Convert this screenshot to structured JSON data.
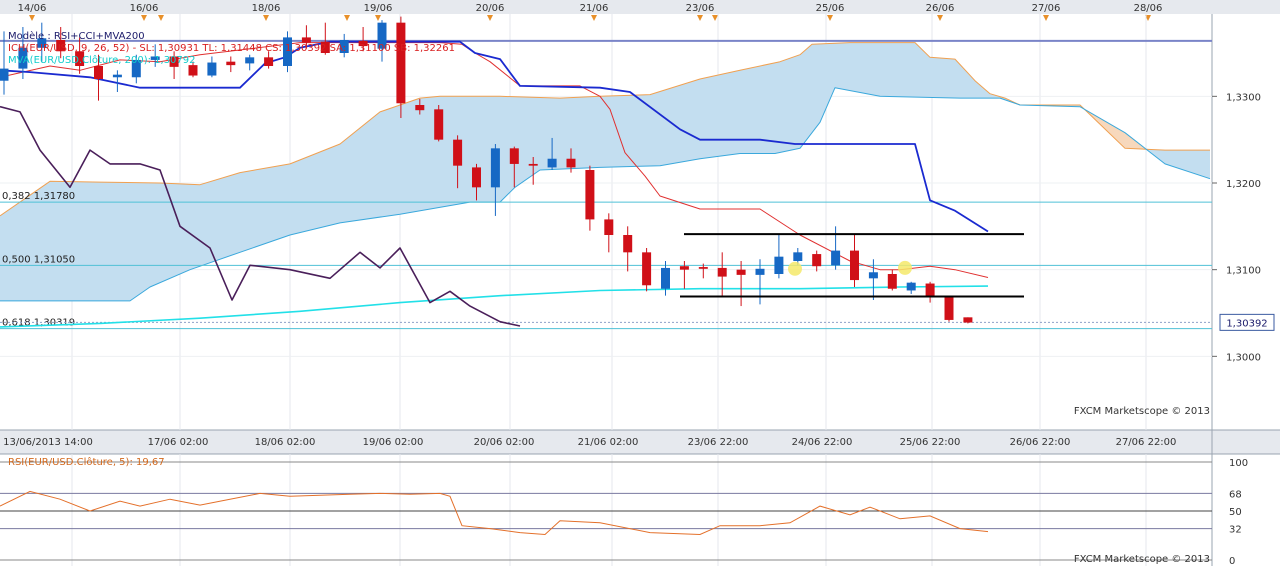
{
  "chart_data": [
    {
      "type": "candlestick",
      "title": "Modèle : RSI+CCI+MVA200",
      "indicators": [
        {
          "name": "Ichimoku",
          "text": "ICH(EUR/USD, 9, 26, 52) - SL: 1,30931  TL: 1,31448  CS: 1,30392  SA: 1,31100  SB: 1,32261",
          "color": "#d92020"
        },
        {
          "name": "MVA",
          "text": "MVA(EUR/USD.Clôture, 200): 1,30792",
          "color": "#11cccc"
        }
      ],
      "top_date_labels": [
        "14/06",
        "16/06",
        "18/06",
        "19/06",
        "20/06",
        "21/06",
        "23/06",
        "25/06",
        "26/06",
        "27/06",
        "28/06"
      ],
      "bottom_date_labels": [
        "13/06/2013 14:00",
        "17/06 02:00",
        "18/06 02:00",
        "19/06 02:00",
        "20/06 02:00",
        "21/06 02:00",
        "23/06 22:00",
        "24/06 22:00",
        "25/06 22:00",
        "26/06 22:00",
        "27/06 22:00"
      ],
      "y_ticks": [
        "1,3300",
        "1,3200",
        "1,3100",
        "1,3000"
      ],
      "y_tick_values": [
        1.33,
        1.32,
        1.31,
        1.3
      ],
      "ylim": [
        1.2915,
        1.3395
      ],
      "last_price": "1,30392",
      "last_price_value": 1.30392,
      "fib_levels": [
        {
          "label": "0,382 1,31780",
          "value": 1.3178
        },
        {
          "label": "0,500 1,31050",
          "value": 1.3105
        },
        {
          "label": "0,618 1,30319",
          "value": 1.3032
        }
      ],
      "top_level": 1.3364,
      "range_box": {
        "high": 1.3141,
        "low": 1.3069
      },
      "candles": [
        {
          "o": 1.3318,
          "h": 1.3375,
          "l": 1.3302,
          "c": 1.3332
        },
        {
          "o": 1.3332,
          "h": 1.338,
          "l": 1.332,
          "c": 1.3356
        },
        {
          "o": 1.3356,
          "h": 1.3385,
          "l": 1.334,
          "c": 1.3367
        },
        {
          "o": 1.3365,
          "h": 1.338,
          "l": 1.3344,
          "c": 1.3352
        },
        {
          "o": 1.3352,
          "h": 1.3368,
          "l": 1.3326,
          "c": 1.3335
        },
        {
          "o": 1.3335,
          "h": 1.3348,
          "l": 1.3295,
          "c": 1.332
        },
        {
          "o": 1.3322,
          "h": 1.333,
          "l": 1.3305,
          "c": 1.3325
        },
        {
          "o": 1.3322,
          "h": 1.3348,
          "l": 1.3315,
          "c": 1.3342
        },
        {
          "o": 1.3342,
          "h": 1.336,
          "l": 1.3334,
          "c": 1.3346
        },
        {
          "o": 1.3346,
          "h": 1.3352,
          "l": 1.332,
          "c": 1.3334
        },
        {
          "o": 1.3336,
          "h": 1.334,
          "l": 1.3322,
          "c": 1.3324
        },
        {
          "o": 1.3324,
          "h": 1.3346,
          "l": 1.3322,
          "c": 1.3339
        },
        {
          "o": 1.334,
          "h": 1.3346,
          "l": 1.3328,
          "c": 1.3336
        },
        {
          "o": 1.3338,
          "h": 1.3348,
          "l": 1.333,
          "c": 1.3345
        },
        {
          "o": 1.3345,
          "h": 1.3352,
          "l": 1.3332,
          "c": 1.3335
        },
        {
          "o": 1.3335,
          "h": 1.3375,
          "l": 1.3328,
          "c": 1.3368
        },
        {
          "o": 1.3368,
          "h": 1.3382,
          "l": 1.3355,
          "c": 1.3362
        },
        {
          "o": 1.3363,
          "h": 1.3385,
          "l": 1.3348,
          "c": 1.335
        },
        {
          "o": 1.335,
          "h": 1.3372,
          "l": 1.3345,
          "c": 1.3365
        },
        {
          "o": 1.3364,
          "h": 1.338,
          "l": 1.3352,
          "c": 1.3358
        },
        {
          "o": 1.3355,
          "h": 1.3388,
          "l": 1.334,
          "c": 1.3385
        },
        {
          "o": 1.3385,
          "h": 1.3392,
          "l": 1.3275,
          "c": 1.3292
        },
        {
          "o": 1.329,
          "h": 1.3297,
          "l": 1.3279,
          "c": 1.3284
        },
        {
          "o": 1.3285,
          "h": 1.329,
          "l": 1.3248,
          "c": 1.325
        },
        {
          "o": 1.325,
          "h": 1.3255,
          "l": 1.3194,
          "c": 1.322
        },
        {
          "o": 1.3218,
          "h": 1.3222,
          "l": 1.318,
          "c": 1.3195
        },
        {
          "o": 1.3195,
          "h": 1.3245,
          "l": 1.3162,
          "c": 1.324
        },
        {
          "o": 1.324,
          "h": 1.3242,
          "l": 1.3195,
          "c": 1.3222
        },
        {
          "o": 1.3222,
          "h": 1.323,
          "l": 1.3198,
          "c": 1.322
        },
        {
          "o": 1.3218,
          "h": 1.3252,
          "l": 1.3215,
          "c": 1.3228
        },
        {
          "o": 1.3228,
          "h": 1.324,
          "l": 1.3212,
          "c": 1.3218
        },
        {
          "o": 1.3215,
          "h": 1.322,
          "l": 1.3145,
          "c": 1.3158
        },
        {
          "o": 1.3158,
          "h": 1.3165,
          "l": 1.312,
          "c": 1.314
        },
        {
          "o": 1.314,
          "h": 1.315,
          "l": 1.3098,
          "c": 1.312
        },
        {
          "o": 1.312,
          "h": 1.3125,
          "l": 1.3075,
          "c": 1.3082
        },
        {
          "o": 1.3078,
          "h": 1.311,
          "l": 1.307,
          "c": 1.3102
        },
        {
          "o": 1.3104,
          "h": 1.311,
          "l": 1.3078,
          "c": 1.31
        },
        {
          "o": 1.3103,
          "h": 1.3107,
          "l": 1.309,
          "c": 1.3101
        },
        {
          "o": 1.3102,
          "h": 1.312,
          "l": 1.3068,
          "c": 1.3092
        },
        {
          "o": 1.31,
          "h": 1.311,
          "l": 1.3058,
          "c": 1.3094
        },
        {
          "o": 1.3094,
          "h": 1.3112,
          "l": 1.306,
          "c": 1.3101
        },
        {
          "o": 1.3095,
          "h": 1.314,
          "l": 1.309,
          "c": 1.3115
        },
        {
          "o": 1.311,
          "h": 1.3125,
          "l": 1.3105,
          "c": 1.312
        },
        {
          "o": 1.3118,
          "h": 1.3122,
          "l": 1.3098,
          "c": 1.3104
        },
        {
          "o": 1.3105,
          "h": 1.315,
          "l": 1.31,
          "c": 1.3122
        },
        {
          "o": 1.3122,
          "h": 1.314,
          "l": 1.308,
          "c": 1.3088
        },
        {
          "o": 1.309,
          "h": 1.3112,
          "l": 1.3065,
          "c": 1.3097
        },
        {
          "o": 1.3095,
          "h": 1.31,
          "l": 1.3076,
          "c": 1.3078
        },
        {
          "o": 1.3076,
          "h": 1.3086,
          "l": 1.3072,
          "c": 1.3085
        },
        {
          "o": 1.3084,
          "h": 1.3086,
          "l": 1.3062,
          "c": 1.3068
        },
        {
          "o": 1.3068,
          "h": 1.307,
          "l": 1.304,
          "c": 1.3042
        },
        {
          "o": 1.3045,
          "h": 1.3045,
          "l": 1.3038,
          "c": 1.3039
        }
      ],
      "kumo_span_a": [
        [
          0,
          1.3162
        ],
        [
          50,
          1.3202
        ],
        [
          100,
          1.3201
        ],
        [
          160,
          1.32
        ],
        [
          200,
          1.3198
        ],
        [
          240,
          1.3212
        ],
        [
          290,
          1.3222
        ],
        [
          340,
          1.3245
        ],
        [
          380,
          1.3282
        ],
        [
          420,
          1.3298
        ],
        [
          440,
          1.33
        ],
        [
          500,
          1.33
        ],
        [
          560,
          1.3298
        ],
        [
          600,
          1.33
        ],
        [
          650,
          1.3302
        ],
        [
          700,
          1.332
        ],
        [
          740,
          1.333
        ],
        [
          780,
          1.334
        ],
        [
          800,
          1.3348
        ],
        [
          812,
          1.336
        ],
        [
          850,
          1.3362
        ],
        [
          915,
          1.3362
        ],
        [
          930,
          1.3345
        ],
        [
          955,
          1.3343
        ],
        [
          975,
          1.3318
        ],
        [
          990,
          1.3303
        ],
        [
          1005,
          1.3298
        ],
        [
          1020,
          1.329
        ],
        [
          1080,
          1.329
        ],
        [
          1125,
          1.324
        ],
        [
          1165,
          1.3238
        ],
        [
          1210,
          1.3238
        ]
      ],
      "kumo_span_b": [
        [
          0,
          1.3064
        ],
        [
          60,
          1.3064
        ],
        [
          130,
          1.3064
        ],
        [
          150,
          1.308
        ],
        [
          190,
          1.31
        ],
        [
          240,
          1.312
        ],
        [
          290,
          1.314
        ],
        [
          340,
          1.3154
        ],
        [
          400,
          1.3164
        ],
        [
          470,
          1.3178
        ],
        [
          500,
          1.3178
        ],
        [
          515,
          1.3195
        ],
        [
          540,
          1.3215
        ],
        [
          600,
          1.3218
        ],
        [
          660,
          1.322
        ],
        [
          700,
          1.3228
        ],
        [
          740,
          1.3234
        ],
        [
          775,
          1.3234
        ],
        [
          800,
          1.324
        ],
        [
          820,
          1.327
        ],
        [
          835,
          1.331
        ],
        [
          880,
          1.33
        ],
        [
          960,
          1.3298
        ],
        [
          1000,
          1.3298
        ],
        [
          1020,
          1.329
        ],
        [
          1080,
          1.3288
        ],
        [
          1125,
          1.3258
        ],
        [
          1165,
          1.3222
        ],
        [
          1210,
          1.3205
        ]
      ],
      "kijun_line": [
        [
          0,
          1.333
        ],
        [
          30,
          1.3328
        ],
        [
          90,
          1.3322
        ],
        [
          140,
          1.331
        ],
        [
          240,
          1.331
        ],
        [
          265,
          1.3338
        ],
        [
          285,
          1.3345
        ],
        [
          300,
          1.3356
        ],
        [
          330,
          1.3363
        ],
        [
          460,
          1.3363
        ],
        [
          475,
          1.335
        ],
        [
          500,
          1.3343
        ],
        [
          520,
          1.3312
        ],
        [
          600,
          1.331
        ],
        [
          630,
          1.3305
        ],
        [
          680,
          1.3262
        ],
        [
          700,
          1.325
        ],
        [
          760,
          1.325
        ],
        [
          795,
          1.3245
        ],
        [
          915,
          1.3245
        ],
        [
          930,
          1.318
        ],
        [
          955,
          1.3168
        ],
        [
          988,
          1.3144
        ]
      ],
      "tenkan_line": [
        [
          0,
          1.3322
        ],
        [
          50,
          1.3335
        ],
        [
          80,
          1.333
        ],
        [
          120,
          1.3342
        ],
        [
          160,
          1.334
        ],
        [
          200,
          1.3348
        ],
        [
          250,
          1.3355
        ],
        [
          300,
          1.3362
        ],
        [
          360,
          1.3362
        ],
        [
          400,
          1.3362
        ],
        [
          440,
          1.3362
        ],
        [
          462,
          1.336
        ],
        [
          475,
          1.335
        ],
        [
          490,
          1.334
        ],
        [
          520,
          1.3312
        ],
        [
          580,
          1.3312
        ],
        [
          600,
          1.33
        ],
        [
          610,
          1.3285
        ],
        [
          625,
          1.3235
        ],
        [
          645,
          1.3208
        ],
        [
          660,
          1.3185
        ],
        [
          700,
          1.317
        ],
        [
          760,
          1.317
        ],
        [
          800,
          1.314
        ],
        [
          850,
          1.311
        ],
        [
          880,
          1.31
        ],
        [
          900,
          1.31
        ],
        [
          930,
          1.3104
        ],
        [
          955,
          1.31
        ],
        [
          988,
          1.3091
        ]
      ],
      "chikou_line": [
        [
          0,
          1.3288
        ],
        [
          20,
          1.3282
        ],
        [
          40,
          1.3238
        ],
        [
          70,
          1.3195
        ],
        [
          90,
          1.3238
        ],
        [
          110,
          1.3222
        ],
        [
          140,
          1.3222
        ],
        [
          160,
          1.3215
        ],
        [
          180,
          1.315
        ],
        [
          210,
          1.3125
        ],
        [
          232,
          1.3065
        ],
        [
          250,
          1.3105
        ],
        [
          290,
          1.31
        ],
        [
          330,
          1.309
        ],
        [
          360,
          1.312
        ],
        [
          380,
          1.3102
        ],
        [
          400,
          1.3125
        ],
        [
          430,
          1.3062
        ],
        [
          450,
          1.3075
        ],
        [
          470,
          1.3058
        ],
        [
          500,
          1.304
        ],
        [
          520,
          1.3035
        ]
      ],
      "mva200_line": [
        [
          0,
          1.3034
        ],
        [
          100,
          1.3038
        ],
        [
          200,
          1.3044
        ],
        [
          300,
          1.3052
        ],
        [
          400,
          1.3062
        ],
        [
          500,
          1.307
        ],
        [
          600,
          1.3076
        ],
        [
          700,
          1.3078
        ],
        [
          800,
          1.3078
        ],
        [
          900,
          1.308
        ],
        [
          988,
          1.3081
        ]
      ],
      "watermark": "FXCM Marketscope © 2013"
    },
    {
      "type": "line",
      "title": "RSI(EUR/USD.Clôture, 5): 19,67",
      "y_ticks": [
        "100",
        "68",
        "50",
        "32",
        "0"
      ],
      "y_tick_values": [
        100,
        68,
        50,
        32,
        0
      ],
      "ylim": [
        0,
        100
      ],
      "series": [
        {
          "name": "RSI",
          "points": [
            [
              0,
              55
            ],
            [
              30,
              70
            ],
            [
              60,
              62
            ],
            [
              90,
              50
            ],
            [
              120,
              60
            ],
            [
              140,
              55
            ],
            [
              170,
              62
            ],
            [
              200,
              56
            ],
            [
              230,
              62
            ],
            [
              260,
              68
            ],
            [
              290,
              65
            ],
            [
              320,
              66
            ],
            [
              350,
              67
            ],
            [
              380,
              68
            ],
            [
              410,
              67
            ],
            [
              440,
              68
            ],
            [
              450,
              65
            ],
            [
              462,
              35
            ],
            [
              490,
              32
            ],
            [
              520,
              28
            ],
            [
              545,
              26
            ],
            [
              560,
              40
            ],
            [
              600,
              38
            ],
            [
              650,
              28
            ],
            [
              700,
              26
            ],
            [
              720,
              35
            ],
            [
              760,
              35
            ],
            [
              790,
              38
            ],
            [
              820,
              55
            ],
            [
              850,
              46
            ],
            [
              870,
              54
            ],
            [
              900,
              42
            ],
            [
              930,
              45
            ],
            [
              960,
              32
            ],
            [
              988,
              29
            ]
          ]
        }
      ],
      "watermark": "FXCM Marketscope © 2013"
    }
  ]
}
